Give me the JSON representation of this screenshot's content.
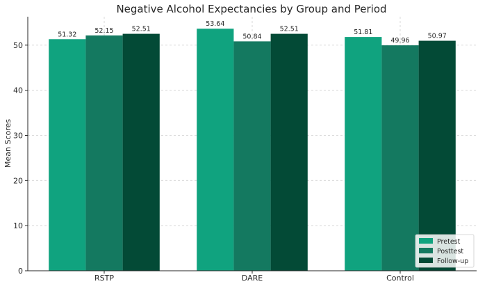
{
  "chart_data": {
    "type": "bar",
    "title": "Negative Alcohol Expectancies by Group and Period",
    "xlabel": "",
    "ylabel": "Mean Scores",
    "categories": [
      "RSTP",
      "DARE",
      "Control"
    ],
    "series": [
      {
        "name": "Pretest",
        "values": [
          51.32,
          53.64,
          51.81
        ],
        "color": "#10a37f"
      },
      {
        "name": "Posttest",
        "values": [
          52.15,
          50.84,
          49.96
        ],
        "color": "#147960"
      },
      {
        "name": "Follow-up",
        "values": [
          52.51,
          52.51,
          50.97
        ],
        "color": "#034a36"
      }
    ],
    "value_labels": [
      [
        "51.32",
        "53.64",
        "51.81"
      ],
      [
        "52.15",
        "50.84",
        "49.96"
      ],
      [
        "52.51",
        "52.51",
        "50.97"
      ]
    ],
    "ylim": [
      0,
      56.3
    ],
    "yticks": [
      0,
      10,
      20,
      30,
      40,
      50
    ],
    "ytick_labels": [
      "0",
      "10",
      "20",
      "30",
      "40",
      "50"
    ],
    "grid": true,
    "legend": "lower-right"
  }
}
